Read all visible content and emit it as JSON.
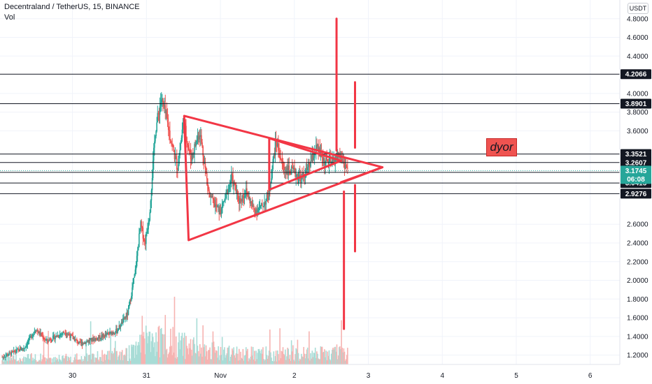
{
  "header": {
    "title": "Decentraland / TetherUS, 15, BINANCE",
    "indicator": "Vol"
  },
  "currency": "USDT",
  "annotation": "dyor",
  "colors": {
    "up": "#26a69a",
    "down": "#ef5350",
    "drawing": "#f23645",
    "hline": "#131722",
    "price_tag": "#26a69a",
    "grid": "#f0f3fa",
    "vol_up": "#a8dcd6",
    "vol_down": "#f6b3b1"
  },
  "chart_data": {
    "type": "candlestick",
    "y_ticks": [
      "1.2000",
      "1.4000",
      "1.6000",
      "1.8000",
      "2.0000",
      "2.2000",
      "2.4000",
      "2.6000",
      "3.6000",
      "3.8000",
      "4.0000",
      "4.4000",
      "4.6000",
      "4.8000"
    ],
    "x_ticks": [
      "30",
      "31",
      "Nov",
      "2",
      "3",
      "4",
      "5",
      "6"
    ],
    "x_ticks_day": [
      0,
      1,
      2,
      3,
      4,
      5,
      6,
      7
    ],
    "ylim": [
      1.1,
      5.0
    ],
    "xlim_day": [
      -0.98,
      7.4
    ],
    "last_candle_day": 3.73,
    "current_price": {
      "value": 3.1745,
      "label": "3.1745",
      "countdown": "06:08"
    },
    "horizontal_levels": [
      {
        "value": 4.2066,
        "label": "4.2066"
      },
      {
        "value": 3.8901,
        "label": "3.8901"
      },
      {
        "value": 3.3521,
        "label": "3.3521"
      },
      {
        "value": 3.2607,
        "label": "3.2607"
      },
      {
        "value": 3.1554,
        "label": "3.1554"
      },
      {
        "value": 3.0415,
        "label": "3.0415"
      },
      {
        "value": 2.9276,
        "label": "2.9276"
      }
    ],
    "price_path": [
      {
        "day": -0.95,
        "price": 1.18
      },
      {
        "day": -0.65,
        "price": 1.28
      },
      {
        "day": -0.5,
        "price": 1.48
      },
      {
        "day": -0.35,
        "price": 1.35
      },
      {
        "day": -0.1,
        "price": 1.45
      },
      {
        "day": 0.1,
        "price": 1.32
      },
      {
        "day": 0.4,
        "price": 1.4
      },
      {
        "day": 0.6,
        "price": 1.46
      },
      {
        "day": 0.75,
        "price": 1.65
      },
      {
        "day": 0.85,
        "price": 2.1
      },
      {
        "day": 0.92,
        "price": 2.6
      },
      {
        "day": 0.98,
        "price": 2.4
      },
      {
        "day": 1.04,
        "price": 2.7
      },
      {
        "day": 1.12,
        "price": 3.6
      },
      {
        "day": 1.2,
        "price": 3.95
      },
      {
        "day": 1.28,
        "price": 3.7
      },
      {
        "day": 1.33,
        "price": 3.5
      },
      {
        "day": 1.42,
        "price": 3.2
      },
      {
        "day": 1.5,
        "price": 3.7
      },
      {
        "day": 1.6,
        "price": 3.3
      },
      {
        "day": 1.72,
        "price": 3.6
      },
      {
        "day": 1.85,
        "price": 2.9
      },
      {
        "day": 2.0,
        "price": 2.72
      },
      {
        "day": 2.15,
        "price": 3.1
      },
      {
        "day": 2.25,
        "price": 2.85
      },
      {
        "day": 2.35,
        "price": 2.95
      },
      {
        "day": 2.45,
        "price": 2.75
      },
      {
        "day": 2.55,
        "price": 2.78
      },
      {
        "day": 2.65,
        "price": 2.9
      },
      {
        "day": 2.75,
        "price": 3.5
      },
      {
        "day": 2.85,
        "price": 3.2
      },
      {
        "day": 3.0,
        "price": 3.15
      },
      {
        "day": 3.1,
        "price": 3.08
      },
      {
        "day": 3.2,
        "price": 3.22
      },
      {
        "day": 3.3,
        "price": 3.42
      },
      {
        "day": 3.4,
        "price": 3.28
      },
      {
        "day": 3.5,
        "price": 3.25
      },
      {
        "day": 3.6,
        "price": 3.35
      },
      {
        "day": 3.73,
        "price": 3.1745
      }
    ],
    "drawings": {
      "triangles": [
        [
          {
            "day": 1.51,
            "price": 3.76
          },
          {
            "day": 1.57,
            "price": 2.43
          },
          {
            "day": 4.19,
            "price": 3.21
          }
        ],
        [
          {
            "day": 2.66,
            "price": 3.52
          },
          {
            "day": 2.66,
            "price": 2.97
          },
          {
            "day": 3.63,
            "price": 3.28
          }
        ]
      ],
      "lines": [
        [
          {
            "day": 3.63,
            "price": 3.05
          },
          {
            "day": 4.19,
            "price": 3.21
          }
        ],
        [
          {
            "day": 3.57,
            "price": 4.8
          },
          {
            "day": 3.57,
            "price": 3.39
          }
        ],
        [
          {
            "day": 3.82,
            "price": 4.12
          },
          {
            "day": 3.82,
            "price": 3.42
          }
        ],
        [
          {
            "day": 3.82,
            "price": 3.02
          },
          {
            "day": 3.82,
            "price": 2.31
          }
        ],
        [
          {
            "day": 3.67,
            "price": 2.95
          },
          {
            "day": 3.67,
            "price": 1.48
          }
        ]
      ]
    }
  }
}
